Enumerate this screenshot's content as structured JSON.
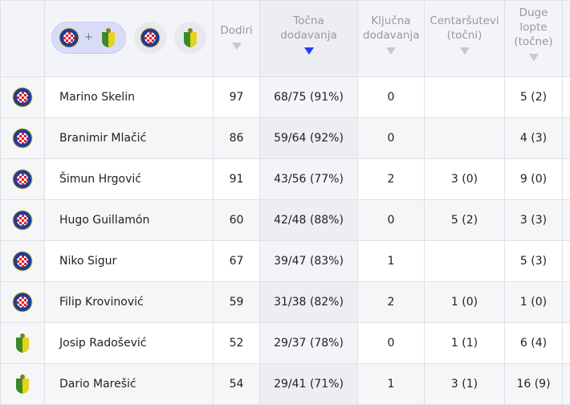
{
  "header": {
    "filter_plus": "+",
    "columns": [
      {
        "label": "Dodiri"
      },
      {
        "label": "Točna dodavanja",
        "sorted": true
      },
      {
        "label": "Ključna dodavanja"
      },
      {
        "label": "Centaršutevi (točni)"
      },
      {
        "label": "Duge lopte (točne)"
      }
    ]
  },
  "colors": {
    "accent": "#2a3cf0",
    "hajduk_red": "#e02030",
    "hajduk_blue": "#1c3f94",
    "istra_green": "#3a8a2a",
    "istra_yellow": "#e8d21a"
  },
  "rows": [
    {
      "team": "hajduk",
      "name": "Marino Skelin",
      "dodiri": "97",
      "tocna": "68/75 (91%)",
      "kljucna": "0",
      "centar": "",
      "duge": "5 (2)"
    },
    {
      "team": "hajduk",
      "name": "Branimir Mlačić",
      "dodiri": "86",
      "tocna": "59/64 (92%)",
      "kljucna": "0",
      "centar": "",
      "duge": "4 (3)"
    },
    {
      "team": "hajduk",
      "name": "Šimun Hrgović",
      "dodiri": "91",
      "tocna": "43/56 (77%)",
      "kljucna": "2",
      "centar": "3 (0)",
      "duge": "9 (0)"
    },
    {
      "team": "hajduk",
      "name": "Hugo Guillamón",
      "dodiri": "60",
      "tocna": "42/48 (88%)",
      "kljucna": "0",
      "centar": "5 (2)",
      "duge": "3 (3)"
    },
    {
      "team": "hajduk",
      "name": "Niko Sigur",
      "dodiri": "67",
      "tocna": "39/47 (83%)",
      "kljucna": "1",
      "centar": "",
      "duge": "5 (3)"
    },
    {
      "team": "hajduk",
      "name": "Filip Krovinović",
      "dodiri": "59",
      "tocna": "31/38 (82%)",
      "kljucna": "2",
      "centar": "1 (0)",
      "duge": "1 (0)"
    },
    {
      "team": "istra",
      "name": "Josip Radošević",
      "dodiri": "52",
      "tocna": "29/37 (78%)",
      "kljucna": "0",
      "centar": "1 (1)",
      "duge": "6 (4)"
    },
    {
      "team": "istra",
      "name": "Dario Marešić",
      "dodiri": "54",
      "tocna": "29/41 (71%)",
      "kljucna": "1",
      "centar": "3 (1)",
      "duge": "16 (9)"
    }
  ]
}
